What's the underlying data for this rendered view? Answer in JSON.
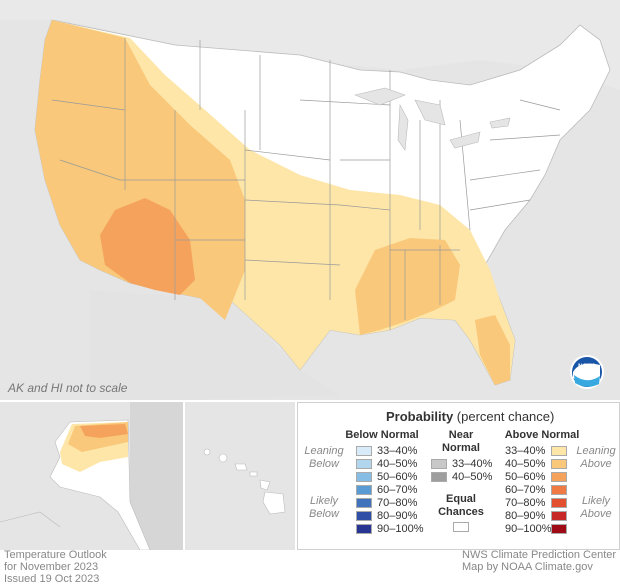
{
  "map": {
    "scale_note": "AK and HI not to scale",
    "logo_text": "NOAA"
  },
  "legend": {
    "title_bold": "Probability",
    "title_rest": " (percent chance)",
    "below": {
      "heading_1": "Below Normal",
      "side_top": [
        "Leaning",
        "Below"
      ],
      "side_bottom": [
        "Likely",
        "Below"
      ],
      "rows": [
        {
          "label": "33–40%",
          "color": "#d8ebf8"
        },
        {
          "label": "40–50%",
          "color": "#b3d6ef"
        },
        {
          "label": "50–60%",
          "color": "#86bde4"
        },
        {
          "label": "60–70%",
          "color": "#5a9bd3"
        },
        {
          "label": "70–80%",
          "color": "#3f74bd"
        },
        {
          "label": "80–90%",
          "color": "#2f4fa6"
        },
        {
          "label": "90–100%",
          "color": "#283593"
        }
      ]
    },
    "near": {
      "heading_1": "Near",
      "heading_2": "Normal",
      "rows": [
        {
          "label": "33–40%",
          "color": "#c8c8c8"
        },
        {
          "label": "40–50%",
          "color": "#9e9e9e"
        }
      ],
      "equal_1": "Equal",
      "equal_2": "Chances",
      "equal_color": "#ffffff"
    },
    "above": {
      "heading_1": "Above Normal",
      "side_top": [
        "Leaning",
        "Above"
      ],
      "side_bottom": [
        "Likely",
        "Above"
      ],
      "rows": [
        {
          "label": "33–40%",
          "color": "#fde6a8"
        },
        {
          "label": "40–50%",
          "color": "#f9c87a"
        },
        {
          "label": "50–60%",
          "color": "#f5a35c"
        },
        {
          "label": "60–70%",
          "color": "#ef7a43"
        },
        {
          "label": "70–80%",
          "color": "#e2502f"
        },
        {
          "label": "80–90%",
          "color": "#c62828"
        },
        {
          "label": "90–100%",
          "color": "#9e0b16"
        }
      ]
    }
  },
  "footer": {
    "left_1": "Temperature Outlook",
    "left_2": "for November 2023",
    "left_3": "Issued 19 Oct 2023",
    "right_1": "NWS Climate Prediction Center",
    "right_2": "Map by NOAA Climate.gov"
  }
}
